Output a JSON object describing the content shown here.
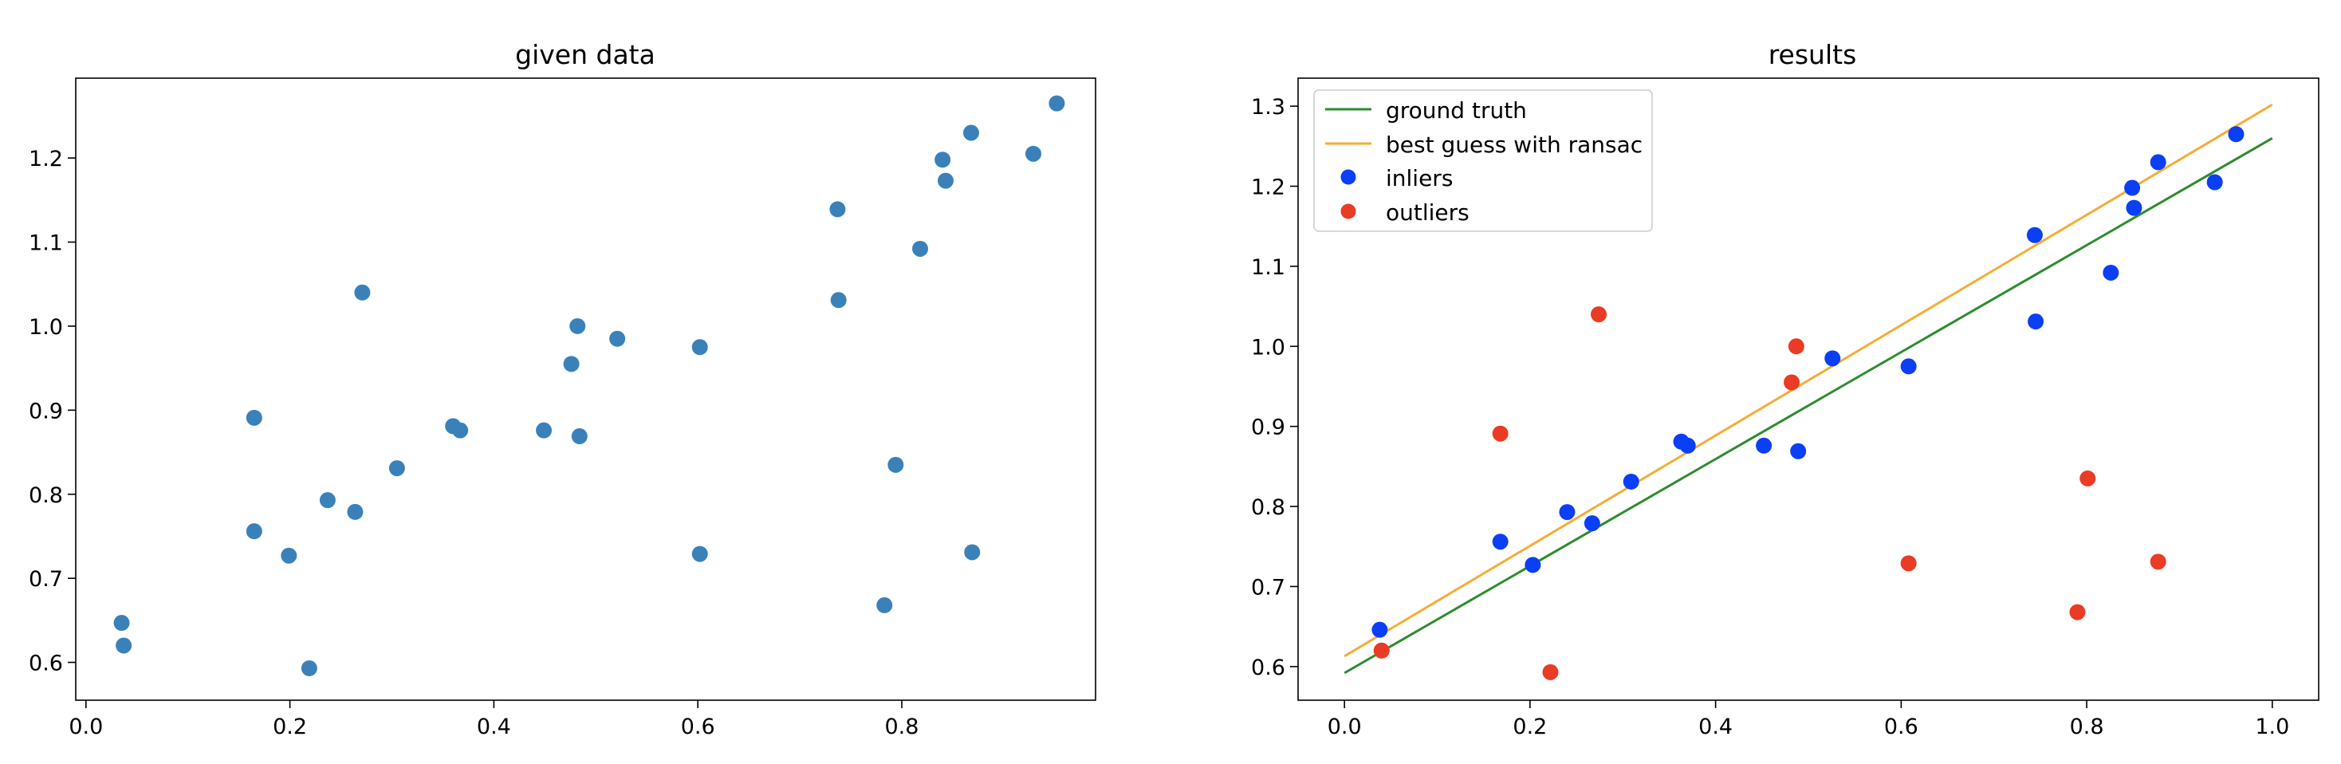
{
  "chart_data": [
    {
      "type": "scatter",
      "title": "given data",
      "xlabel": "",
      "ylabel": "",
      "xlim": [
        -0.01,
        0.99
      ],
      "ylim": [
        0.555,
        1.295
      ],
      "x_ticks": [
        0.0,
        0.2,
        0.4,
        0.6,
        0.8
      ],
      "x_tick_labels": [
        "0.0",
        "0.2",
        "0.4",
        "0.6",
        "0.8"
      ],
      "y_ticks": [
        0.6,
        0.7,
        0.8,
        0.9,
        1.0,
        1.1,
        1.2
      ],
      "y_tick_labels": [
        "0.6",
        "0.7",
        "0.8",
        "0.9",
        "1.0",
        "1.1",
        "1.2"
      ],
      "grid": false,
      "legend": null,
      "series": [
        {
          "color": "#3a81ba",
          "points": [
            [
              0.035,
              0.647
            ],
            [
              0.037,
              0.62
            ],
            [
              0.165,
              0.756
            ],
            [
              0.165,
              0.891
            ],
            [
              0.199,
              0.727
            ],
            [
              0.219,
              0.593
            ],
            [
              0.237,
              0.793
            ],
            [
              0.264,
              0.779
            ],
            [
              0.271,
              1.04
            ],
            [
              0.305,
              0.831
            ],
            [
              0.36,
              0.881
            ],
            [
              0.367,
              0.876
            ],
            [
              0.449,
              0.876
            ],
            [
              0.476,
              0.955
            ],
            [
              0.482,
              1.0
            ],
            [
              0.484,
              0.869
            ],
            [
              0.521,
              0.985
            ],
            [
              0.602,
              0.975
            ],
            [
              0.602,
              0.729
            ],
            [
              0.737,
              1.139
            ],
            [
              0.738,
              1.031
            ],
            [
              0.783,
              0.668
            ],
            [
              0.794,
              0.835
            ],
            [
              0.818,
              1.092
            ],
            [
              0.84,
              1.198
            ],
            [
              0.843,
              1.173
            ],
            [
              0.868,
              1.23
            ],
            [
              0.869,
              0.731
            ],
            [
              0.929,
              1.205
            ],
            [
              0.952,
              1.265
            ]
          ]
        }
      ]
    },
    {
      "type": "scatter",
      "title": "results",
      "xlabel": "",
      "ylabel": "",
      "xlim": [
        -0.05,
        1.05
      ],
      "ylim": [
        0.558,
        1.335
      ],
      "x_ticks": [
        0.0,
        0.2,
        0.4,
        0.6,
        0.8,
        1.0
      ],
      "x_tick_labels": [
        "0.0",
        "0.2",
        "0.4",
        "0.6",
        "0.8",
        "1.0"
      ],
      "y_ticks": [
        0.6,
        0.7,
        0.8,
        0.9,
        1.0,
        1.1,
        1.2,
        1.3
      ],
      "y_tick_labels": [
        "0.6",
        "0.7",
        "0.8",
        "0.9",
        "1.0",
        "1.1",
        "1.2",
        "1.3"
      ],
      "grid": false,
      "legend": "top-left",
      "lines": [
        {
          "name": "ground truth",
          "color": "#2e8b2e",
          "points": [
            [
              0.0,
              0.592
            ],
            [
              1.0,
              1.26
            ]
          ]
        },
        {
          "name": "best guess with ransac",
          "color": "#f3ad37",
          "points": [
            [
              0.0,
              0.613
            ],
            [
              1.0,
              1.302
            ]
          ]
        }
      ],
      "series": [
        {
          "name": "inliers",
          "color": "#0b3ff5",
          "points": [
            [
              0.038,
              0.646
            ],
            [
              0.168,
              0.756
            ],
            [
              0.203,
              0.727
            ],
            [
              0.24,
              0.793
            ],
            [
              0.267,
              0.779
            ],
            [
              0.309,
              0.831
            ],
            [
              0.363,
              0.881
            ],
            [
              0.37,
              0.876
            ],
            [
              0.452,
              0.876
            ],
            [
              0.489,
              0.869
            ],
            [
              0.526,
              0.985
            ],
            [
              0.608,
              0.975
            ],
            [
              0.744,
              1.139
            ],
            [
              0.745,
              1.031
            ],
            [
              0.826,
              1.092
            ],
            [
              0.849,
              1.198
            ],
            [
              0.851,
              1.173
            ],
            [
              0.877,
              1.23
            ],
            [
              0.938,
              1.205
            ],
            [
              0.961,
              1.265
            ]
          ]
        },
        {
          "name": "outliers",
          "color": "#ea3b24",
          "points": [
            [
              0.04,
              0.62
            ],
            [
              0.168,
              0.891
            ],
            [
              0.222,
              0.593
            ],
            [
              0.274,
              1.04
            ],
            [
              0.482,
              0.955
            ],
            [
              0.487,
              1.0
            ],
            [
              0.608,
              0.729
            ],
            [
              0.79,
              0.668
            ],
            [
              0.801,
              0.835
            ],
            [
              0.877,
              0.731
            ]
          ]
        }
      ]
    }
  ]
}
